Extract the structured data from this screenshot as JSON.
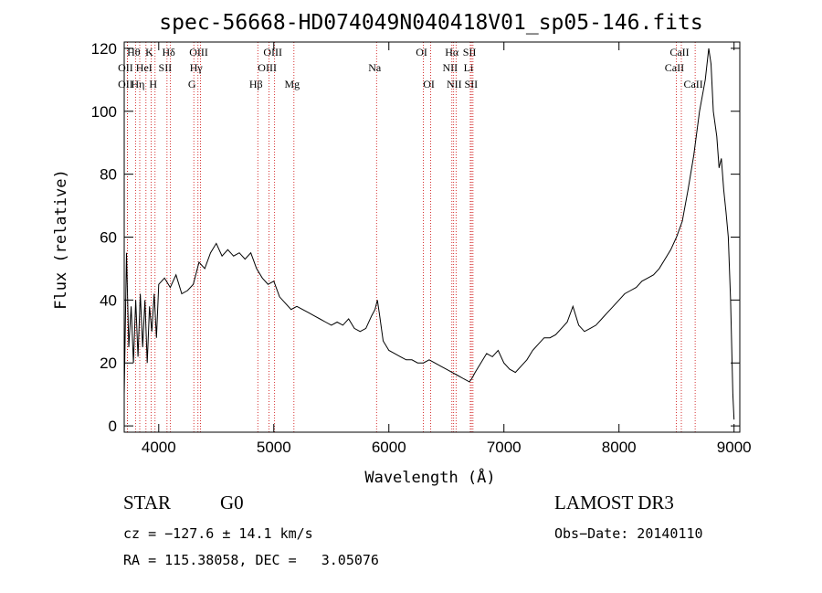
{
  "chart_data": {
    "type": "line",
    "title": "spec-56668-HD074049N040418V01_sp05-146.fits",
    "xlabel": "Wavelength (Å)",
    "ylabel": "Flux (relative)",
    "xlim": [
      3700,
      9050
    ],
    "ylim": [
      -2,
      122
    ],
    "xticks": [
      4000,
      5000,
      6000,
      7000,
      8000,
      9000
    ],
    "yticks": [
      0,
      20,
      40,
      60,
      80,
      100,
      120
    ],
    "line_color": "#000000",
    "marker_color": "#cc0000",
    "spectrum": {
      "x": [
        3700,
        3720,
        3740,
        3760,
        3780,
        3800,
        3820,
        3840,
        3860,
        3880,
        3900,
        3920,
        3940,
        3960,
        3980,
        4000,
        4050,
        4100,
        4150,
        4200,
        4250,
        4300,
        4350,
        4400,
        4450,
        4500,
        4550,
        4600,
        4650,
        4700,
        4750,
        4800,
        4850,
        4900,
        4950,
        5000,
        5050,
        5100,
        5150,
        5200,
        5250,
        5300,
        5350,
        5400,
        5450,
        5500,
        5550,
        5600,
        5650,
        5700,
        5750,
        5800,
        5850,
        5880,
        5900,
        5920,
        5950,
        6000,
        6050,
        6100,
        6150,
        6200,
        6250,
        6300,
        6350,
        6400,
        6450,
        6500,
        6550,
        6600,
        6650,
        6700,
        6720,
        6750,
        6800,
        6850,
        6900,
        6950,
        7000,
        7050,
        7100,
        7150,
        7200,
        7250,
        7300,
        7350,
        7400,
        7450,
        7500,
        7550,
        7600,
        7650,
        7700,
        7750,
        7800,
        7850,
        7900,
        7950,
        8000,
        8050,
        8100,
        8150,
        8200,
        8250,
        8300,
        8350,
        8400,
        8450,
        8500,
        8550,
        8600,
        8650,
        8700,
        8750,
        8780,
        8800,
        8820,
        8850,
        8870,
        8890,
        8910,
        8930,
        8950,
        8970,
        8990,
        9000
      ],
      "y": [
        10,
        55,
        25,
        38,
        20,
        40,
        22,
        42,
        25,
        40,
        20,
        38,
        30,
        42,
        28,
        45,
        47,
        44,
        48,
        42,
        43,
        45,
        52,
        50,
        55,
        58,
        54,
        56,
        54,
        55,
        53,
        55,
        50,
        47,
        45,
        46,
        41,
        39,
        37,
        38,
        37,
        36,
        35,
        34,
        33,
        32,
        33,
        32,
        34,
        31,
        30,
        31,
        35,
        37,
        40,
        35,
        27,
        24,
        23,
        22,
        21,
        21,
        20,
        20,
        21,
        20,
        19,
        18,
        17,
        16,
        15,
        14,
        15,
        17,
        20,
        23,
        22,
        24,
        20,
        18,
        17,
        19,
        21,
        24,
        26,
        28,
        28,
        29,
        31,
        33,
        38,
        32,
        30,
        31,
        32,
        34,
        36,
        38,
        40,
        42,
        43,
        44,
        46,
        47,
        48,
        50,
        53,
        56,
        60,
        65,
        75,
        86,
        100,
        110,
        120,
        115,
        100,
        92,
        82,
        85,
        75,
        68,
        60,
        40,
        10,
        2
      ]
    },
    "lines": [
      {
        "name": "Hθ",
        "wl": 3798,
        "row": 0
      },
      {
        "name": "OII",
        "wl": 3727,
        "row": 1
      },
      {
        "name": "OII",
        "wl": 3727,
        "row": 2
      },
      {
        "name": "Hη",
        "wl": 3835,
        "row": 2
      },
      {
        "name": "HeI",
        "wl": 3889,
        "row": 1
      },
      {
        "name": "K",
        "wl": 3934,
        "row": 0
      },
      {
        "name": "SII",
        "wl": 4072,
        "row": 1
      },
      {
        "name": "H",
        "wl": 3968,
        "row": 2
      },
      {
        "name": "Hδ",
        "wl": 4102,
        "row": 0
      },
      {
        "name": "OIII",
        "wl": 4363,
        "row": 0
      },
      {
        "name": "Hγ",
        "wl": 4341,
        "row": 1
      },
      {
        "name": "G",
        "wl": 4305,
        "row": 2
      },
      {
        "name": "Hβ",
        "wl": 4861,
        "row": 2
      },
      {
        "name": "OIII",
        "wl": 5007,
        "row": 0
      },
      {
        "name": "OIII",
        "wl": 4959,
        "row": 1
      },
      {
        "name": "Mg",
        "wl": 5175,
        "row": 2
      },
      {
        "name": "Na",
        "wl": 5893,
        "row": 1
      },
      {
        "name": "OI",
        "wl": 6300,
        "row": 0
      },
      {
        "name": "OI",
        "wl": 6364,
        "row": 2
      },
      {
        "name": "Hα",
        "wl": 6563,
        "row": 0
      },
      {
        "name": "SII",
        "wl": 6717,
        "row": 0
      },
      {
        "name": "NII",
        "wl": 6548,
        "row": 1
      },
      {
        "name": "Li",
        "wl": 6708,
        "row": 1
      },
      {
        "name": "NII",
        "wl": 6584,
        "row": 2
      },
      {
        "name": "SII",
        "wl": 6731,
        "row": 2
      },
      {
        "name": "CaII",
        "wl": 8542,
        "row": 0
      },
      {
        "name": "CaII",
        "wl": 8498,
        "row": 1
      },
      {
        "name": "CaII",
        "wl": 8662,
        "row": 2
      }
    ]
  },
  "footer": {
    "class": "STAR",
    "subclass": "G0",
    "survey": "LAMOST DR3",
    "cz": "cz = −127.6 ± 14.1 km/s",
    "obs_date": "Obs−Date: 20140110",
    "coords": "RA = 115.38058, DEC =   3.05076"
  }
}
